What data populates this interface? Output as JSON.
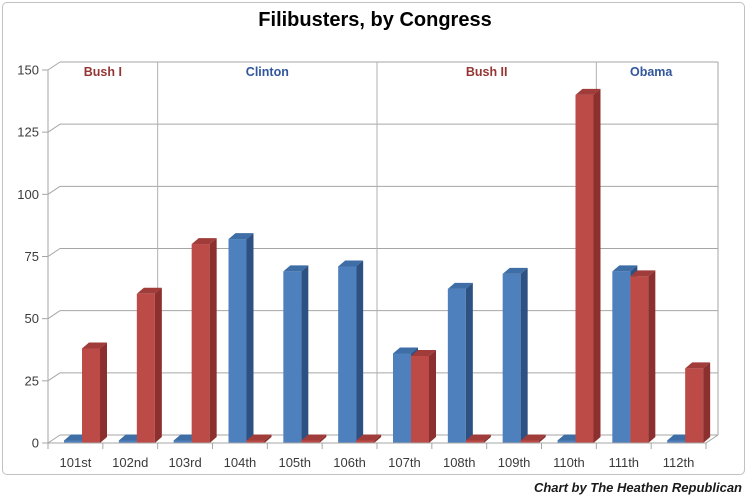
{
  "title": "Filibusters, by Congress",
  "caption": "Chart by The Heathen Republican",
  "chart_data": {
    "type": "bar",
    "style": "3d-clustered-column",
    "title": "Filibusters, by Congress",
    "categories": [
      "101st",
      "102nd",
      "103rd",
      "104th",
      "105th",
      "106th",
      "107th",
      "108th",
      "109th",
      "110th",
      "111th",
      "112th"
    ],
    "series": [
      {
        "name": "blue",
        "color_front": "#4d80bc",
        "color_top": "#3e6ea5",
        "color_side": "#2e5184",
        "values": [
          0,
          0,
          0,
          82,
          69,
          71,
          36,
          62,
          68,
          0,
          69,
          0
        ]
      },
      {
        "name": "red",
        "color_front": "#bc4a47",
        "color_top": "#a03c39",
        "color_side": "#8b302e",
        "values": [
          38,
          60,
          80,
          0,
          0,
          0,
          35,
          0,
          0,
          140,
          67,
          30
        ]
      }
    ],
    "eras": [
      {
        "label": "Bush I",
        "color": "#943634",
        "start_category": 0,
        "end_category": 1
      },
      {
        "label": "Clinton",
        "color": "#31569b",
        "start_category": 2,
        "end_category": 5
      },
      {
        "label": "Bush II",
        "color": "#943634",
        "start_category": 6,
        "end_category": 9
      },
      {
        "label": "Obama",
        "color": "#31569b",
        "start_category": 10,
        "end_category": 11
      }
    ],
    "ylim": [
      0,
      150
    ],
    "yticks": [
      0,
      25,
      50,
      75,
      100,
      125,
      150
    ],
    "grid": true,
    "legend_position": "none",
    "axis_label_color": "#3b3b3b",
    "grid_color": "#a6a6a6"
  }
}
